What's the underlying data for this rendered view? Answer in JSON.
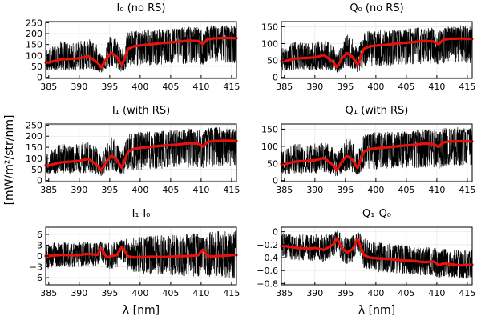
{
  "figure": {
    "ylabel": "[mW/m²/str/nm]",
    "xlabel": "λ [nm]"
  },
  "colors": {
    "noisy_series": "#000000",
    "smooth_series": "#e8120c",
    "grid": "#e6e6e6",
    "background": "#ffffff"
  },
  "chart_data": [
    {
      "type": "line",
      "title": "I₀ (no RS)",
      "xlabel": "",
      "xlim": [
        384.5,
        415.8
      ],
      "ylim": [
        -5,
        255
      ],
      "xticks": [
        385,
        390,
        395,
        400,
        405,
        410,
        415
      ],
      "yticks": [
        0,
        50,
        100,
        150,
        200,
        250
      ],
      "grid": true,
      "x": [
        385,
        387,
        389,
        390,
        391.5,
        393,
        393.6,
        394.5,
        395.3,
        396.2,
        397,
        398,
        399,
        400,
        402,
        404,
        406,
        408,
        409.5,
        410.3,
        411,
        412,
        414,
        415.5
      ],
      "smooth": [
        68,
        82,
        85,
        87,
        97,
        67,
        45,
        88,
        112,
        92,
        55,
        130,
        142,
        146,
        152,
        158,
        162,
        168,
        166,
        152,
        173,
        178,
        180,
        179
      ],
      "noise_min": [
        32,
        36,
        30,
        34,
        38,
        30,
        20,
        40,
        48,
        40,
        22,
        48,
        50,
        52,
        55,
        58,
        60,
        62,
        60,
        55,
        65,
        66,
        68,
        66
      ],
      "noise_max": [
        130,
        165,
        155,
        165,
        178,
        145,
        110,
        165,
        200,
        175,
        125,
        205,
        215,
        215,
        218,
        222,
        226,
        232,
        228,
        212,
        236,
        238,
        240,
        236
      ]
    },
    {
      "type": "line",
      "title": "Q₀ (no RS)",
      "xlabel": "",
      "xlim": [
        384.5,
        415.8
      ],
      "ylim": [
        -3,
        165
      ],
      "xticks": [
        385,
        390,
        395,
        400,
        405,
        410,
        415
      ],
      "yticks": [
        0,
        50,
        100,
        150
      ],
      "grid": true,
      "x": [
        385,
        387,
        389,
        390,
        391.5,
        393,
        393.6,
        394.5,
        395.3,
        396.2,
        397,
        398,
        399,
        400,
        402,
        404,
        406,
        408,
        409.5,
        410.3,
        411,
        412,
        414,
        415.5
      ],
      "smooth": [
        48,
        56,
        58,
        59,
        66,
        45,
        30,
        58,
        72,
        60,
        36,
        84,
        92,
        94,
        97,
        101,
        104,
        108,
        106,
        98,
        111,
        114,
        115,
        114
      ],
      "noise_min": [
        20,
        22,
        20,
        22,
        24,
        18,
        12,
        24,
        30,
        25,
        14,
        30,
        32,
        33,
        35,
        37,
        38,
        40,
        38,
        35,
        42,
        42,
        44,
        42
      ],
      "noise_max": [
        88,
        108,
        100,
        106,
        114,
        94,
        72,
        106,
        128,
        112,
        80,
        132,
        138,
        138,
        140,
        142,
        145,
        148,
        146,
        136,
        151,
        152,
        154,
        151
      ]
    },
    {
      "type": "line",
      "title": "I₁ (with RS)",
      "xlabel": "",
      "xlim": [
        384.5,
        415.8
      ],
      "ylim": [
        -5,
        255
      ],
      "xticks": [
        385,
        390,
        395,
        400,
        405,
        410,
        415
      ],
      "yticks": [
        0,
        50,
        100,
        150,
        200,
        250
      ],
      "grid": true,
      "x": [
        385,
        387,
        389,
        390,
        391.5,
        393,
        393.6,
        394.5,
        395.3,
        396.2,
        397,
        398,
        399,
        400,
        402,
        404,
        406,
        408,
        409.5,
        410.3,
        411,
        412,
        414,
        415.5
      ],
      "smooth": [
        68,
        82,
        86,
        88,
        98,
        68,
        45,
        88,
        112,
        93,
        56,
        130,
        143,
        147,
        153,
        158,
        162,
        168,
        166,
        153,
        173,
        178,
        180,
        179
      ],
      "noise_min": [
        30,
        34,
        28,
        32,
        36,
        28,
        18,
        38,
        46,
        38,
        20,
        46,
        48,
        50,
        52,
        55,
        58,
        60,
        58,
        52,
        62,
        63,
        65,
        63
      ],
      "noise_max": [
        132,
        168,
        158,
        168,
        180,
        148,
        112,
        168,
        202,
        178,
        128,
        208,
        218,
        218,
        220,
        224,
        228,
        234,
        230,
        214,
        238,
        240,
        242,
        238
      ]
    },
    {
      "type": "line",
      "title": "Q₁ (with RS)",
      "xlabel": "",
      "xlim": [
        384.5,
        415.8
      ],
      "ylim": [
        -3,
        165
      ],
      "xticks": [
        385,
        390,
        395,
        400,
        405,
        410,
        415
      ],
      "yticks": [
        0,
        50,
        100,
        150
      ],
      "grid": true,
      "x": [
        385,
        387,
        389,
        390,
        391.5,
        393,
        393.6,
        394.5,
        395.3,
        396.2,
        397,
        398,
        399,
        400,
        402,
        404,
        406,
        408,
        409.5,
        410.3,
        411,
        412,
        414,
        415.5
      ],
      "smooth": [
        48,
        56,
        58,
        59,
        66,
        45,
        30,
        58,
        72,
        60,
        36,
        84,
        92,
        94,
        97,
        101,
        104,
        108,
        106,
        98,
        111,
        114,
        115,
        114
      ],
      "noise_min": [
        19,
        21,
        19,
        21,
        23,
        17,
        11,
        23,
        29,
        24,
        13,
        29,
        31,
        32,
        34,
        36,
        37,
        39,
        37,
        34,
        41,
        41,
        43,
        41
      ],
      "noise_max": [
        90,
        110,
        102,
        108,
        116,
        96,
        74,
        108,
        130,
        114,
        82,
        134,
        140,
        140,
        142,
        144,
        147,
        150,
        148,
        138,
        153,
        154,
        156,
        153
      ]
    },
    {
      "type": "line",
      "title": "I₁-I₀",
      "xlabel": "λ [nm]",
      "xlim": [
        384.5,
        415.8
      ],
      "ylim": [
        -8,
        8
      ],
      "xticks": [
        385,
        390,
        395,
        400,
        405,
        410,
        415
      ],
      "yticks": [
        -6,
        -3,
        0,
        3,
        6
      ],
      "grid": true,
      "x": [
        385,
        387,
        389,
        390,
        391.5,
        393,
        393.6,
        394.5,
        395.3,
        396.2,
        397,
        398,
        399,
        400,
        402,
        404,
        406,
        408,
        409.5,
        410.3,
        411,
        412,
        414,
        415.5
      ],
      "smooth": [
        0.0,
        0.3,
        0.2,
        0.3,
        0.6,
        0.3,
        2.2,
        -0.4,
        0.0,
        0.3,
        2.6,
        -0.1,
        -0.4,
        -0.3,
        -0.2,
        -0.3,
        -0.1,
        0.0,
        0.2,
        1.8,
        0.0,
        -0.1,
        0.1,
        0.3
      ],
      "noise_min": [
        -3.5,
        -3.0,
        -3.2,
        -3.0,
        -2.8,
        -3.0,
        -1.0,
        -3.5,
        -3.8,
        -3.2,
        -0.8,
        -4.0,
        -4.5,
        -4.8,
        -5.0,
        -5.2,
        -5.4,
        -5.6,
        -5.8,
        -3.5,
        -6.0,
        -6.2,
        -6.4,
        -6.4
      ],
      "noise_max": [
        3.5,
        3.8,
        3.6,
        3.8,
        4.0,
        3.8,
        4.2,
        3.6,
        3.8,
        4.0,
        4.6,
        4.8,
        5.0,
        5.2,
        5.5,
        5.8,
        6.0,
        6.2,
        6.4,
        5.5,
        6.6,
        6.8,
        7.0,
        7.0
      ]
    },
    {
      "type": "line",
      "title": "Q₁-Q₀",
      "xlabel": "λ [nm]",
      "xlim": [
        384.5,
        415.8
      ],
      "ylim": [
        -0.82,
        0.07
      ],
      "xticks": [
        385,
        390,
        395,
        400,
        405,
        410,
        415
      ],
      "yticks": [
        -0.8,
        -0.6,
        -0.4,
        -0.2,
        0.0
      ],
      "grid": true,
      "x": [
        385,
        387,
        389,
        390,
        391.5,
        393,
        393.6,
        394.5,
        395.3,
        396.2,
        397,
        398,
        399,
        400,
        402,
        404,
        406,
        408,
        409.5,
        410.3,
        411,
        412,
        414,
        415.5
      ],
      "smooth": [
        -0.22,
        -0.25,
        -0.26,
        -0.25,
        -0.28,
        -0.2,
        -0.1,
        -0.26,
        -0.32,
        -0.27,
        -0.1,
        -0.36,
        -0.4,
        -0.41,
        -0.42,
        -0.44,
        -0.45,
        -0.47,
        -0.46,
        -0.52,
        -0.49,
        -0.5,
        -0.52,
        -0.51
      ],
      "noise_min": [
        -0.42,
        -0.44,
        -0.45,
        -0.45,
        -0.47,
        -0.4,
        -0.3,
        -0.46,
        -0.5,
        -0.46,
        -0.28,
        -0.56,
        -0.6,
        -0.62,
        -0.63,
        -0.65,
        -0.66,
        -0.68,
        -0.67,
        -0.72,
        -0.7,
        -0.71,
        -0.73,
        -0.72
      ],
      "noise_max": [
        -0.02,
        -0.04,
        -0.04,
        -0.03,
        -0.05,
        -0.02,
        0.02,
        -0.05,
        -0.1,
        -0.06,
        0.02,
        -0.1,
        -0.14,
        -0.16,
        -0.18,
        -0.2,
        -0.22,
        -0.24,
        -0.23,
        -0.3,
        -0.26,
        -0.27,
        -0.29,
        -0.28
      ]
    }
  ]
}
